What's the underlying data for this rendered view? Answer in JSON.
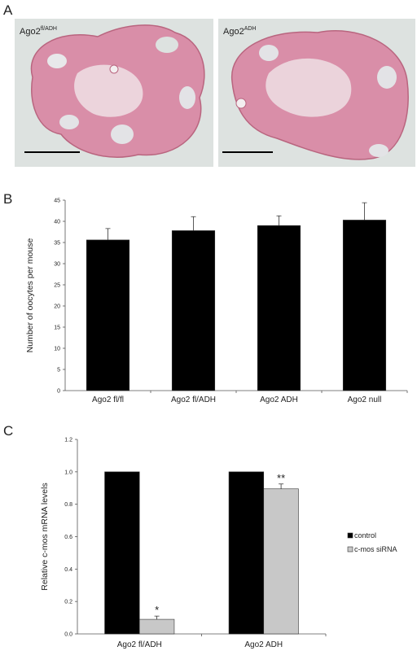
{
  "panels": [
    "A",
    "B",
    "C"
  ],
  "images": [
    {
      "label": "Ago2",
      "superscript": "fl/ADH"
    },
    {
      "label": "Ago2",
      "superscript": "ADH"
    }
  ],
  "chart_data": [
    {
      "type": "bar",
      "ylabel": "Number of oocytes per mouse",
      "categories": [
        "Ago2 fl/fl",
        "Ago2 fl/ADH",
        "Ago2 ADH",
        "Ago2 null"
      ],
      "series": [
        {
          "color": "#000000",
          "values": [
            35.6,
            37.8,
            39.0,
            40.3
          ],
          "errors": [
            2.7,
            3.3,
            2.3,
            4.1
          ]
        }
      ],
      "ylim": [
        0,
        45
      ],
      "yticks": [
        0,
        5,
        10,
        15,
        20,
        25,
        30,
        35,
        40,
        45
      ],
      "grid": false
    },
    {
      "type": "bar",
      "ylabel": "Relative c-mos mRNA levels",
      "categories": [
        "Ago2 fl/ADH",
        "Ago2 ADH"
      ],
      "series": [
        {
          "name": "control",
          "color": "#000000",
          "values": [
            1.0,
            1.0
          ]
        },
        {
          "name": "c-mos siRNA",
          "color": "#c8c8c8",
          "values": [
            0.09,
            0.895
          ],
          "errors": [
            0.02,
            0.03
          ],
          "markers": [
            "*",
            "**"
          ]
        }
      ],
      "ylim": [
        0,
        1.2
      ],
      "yticks": [
        {
          "value": 0,
          "label": "0.0"
        },
        {
          "value": 0.2,
          "label": "0.2"
        },
        {
          "value": 0.4,
          "label": "0.4"
        },
        {
          "value": 0.6,
          "label": "0.6"
        },
        {
          "value": 0.8,
          "label": "0.8"
        },
        {
          "value": 1.0,
          "label": "1.0"
        },
        {
          "value": 1.2,
          "label": "1.2"
        }
      ],
      "grid": false,
      "legend": "right"
    }
  ]
}
